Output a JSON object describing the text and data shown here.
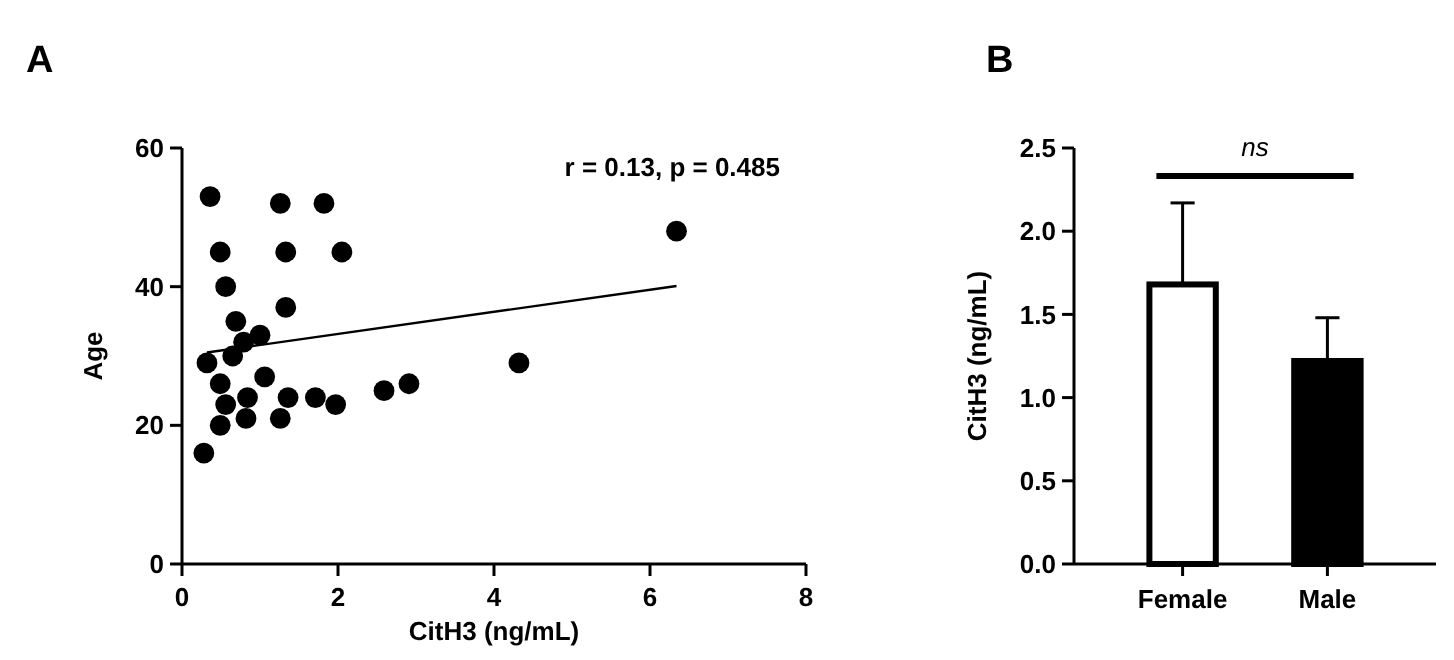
{
  "chart_data": [
    {
      "type": "scatter",
      "xlabel": "CitH3 (ng/mL)",
      "ylabel": "Age",
      "annotations": [
        "A",
        "r = 0.13, p = 0.485"
      ],
      "xlim": [
        0,
        8
      ],
      "ylim": [
        0,
        60
      ],
      "xticks": [
        0,
        2,
        4,
        6,
        8
      ],
      "yticks": [
        0,
        20,
        40,
        60
      ],
      "grid": false,
      "series": [
        {
          "color": "#000000",
          "marker": "circle",
          "x": [
            0.36,
            1.26,
            1.82,
            0.49,
            1.33,
            2.05,
            0.56,
            1.33,
            0.69,
            1.0,
            0.79,
            0.65,
            0.32,
            1.06,
            0.49,
            0.56,
            0.84,
            1.36,
            1.71,
            1.97,
            2.59,
            2.91,
            4.32,
            0.49,
            0.82,
            1.26,
            0.28,
            6.34
          ],
          "values": [
            53,
            52,
            52,
            45,
            45,
            45,
            40,
            37,
            35,
            33,
            32,
            30,
            29,
            27,
            26,
            23,
            24,
            24,
            24,
            23,
            25,
            26,
            29,
            20,
            21,
            21,
            16,
            48
          ]
        },
        {
          "type": "line",
          "color": "#000000",
          "x": [
            0.32,
            6.34
          ],
          "values": [
            30.5,
            40.1
          ]
        }
      ]
    },
    {
      "type": "bar",
      "ylabel": "CitH3 (ng/mL)",
      "annotations": [
        "B",
        "ns"
      ],
      "categories": [
        "Female",
        "Male"
      ],
      "values": [
        1.68,
        1.22
      ],
      "colors": [
        "#ffffff",
        "#000000"
      ],
      "errors": [
        [
          1.68,
          2.17
        ],
        [
          1.22,
          1.48
        ]
      ],
      "ylim": [
        0,
        2.5
      ],
      "yticks": [
        {
          "value": 0,
          "label": "0.0"
        },
        {
          "value": 0.5,
          "label": "0.5"
        },
        {
          "value": 1,
          "label": "1.0"
        },
        {
          "value": 1.5,
          "label": "1.5"
        },
        {
          "value": 2,
          "label": "2.0"
        },
        {
          "value": 2.5,
          "label": "2.5"
        }
      ],
      "grid": false
    }
  ]
}
